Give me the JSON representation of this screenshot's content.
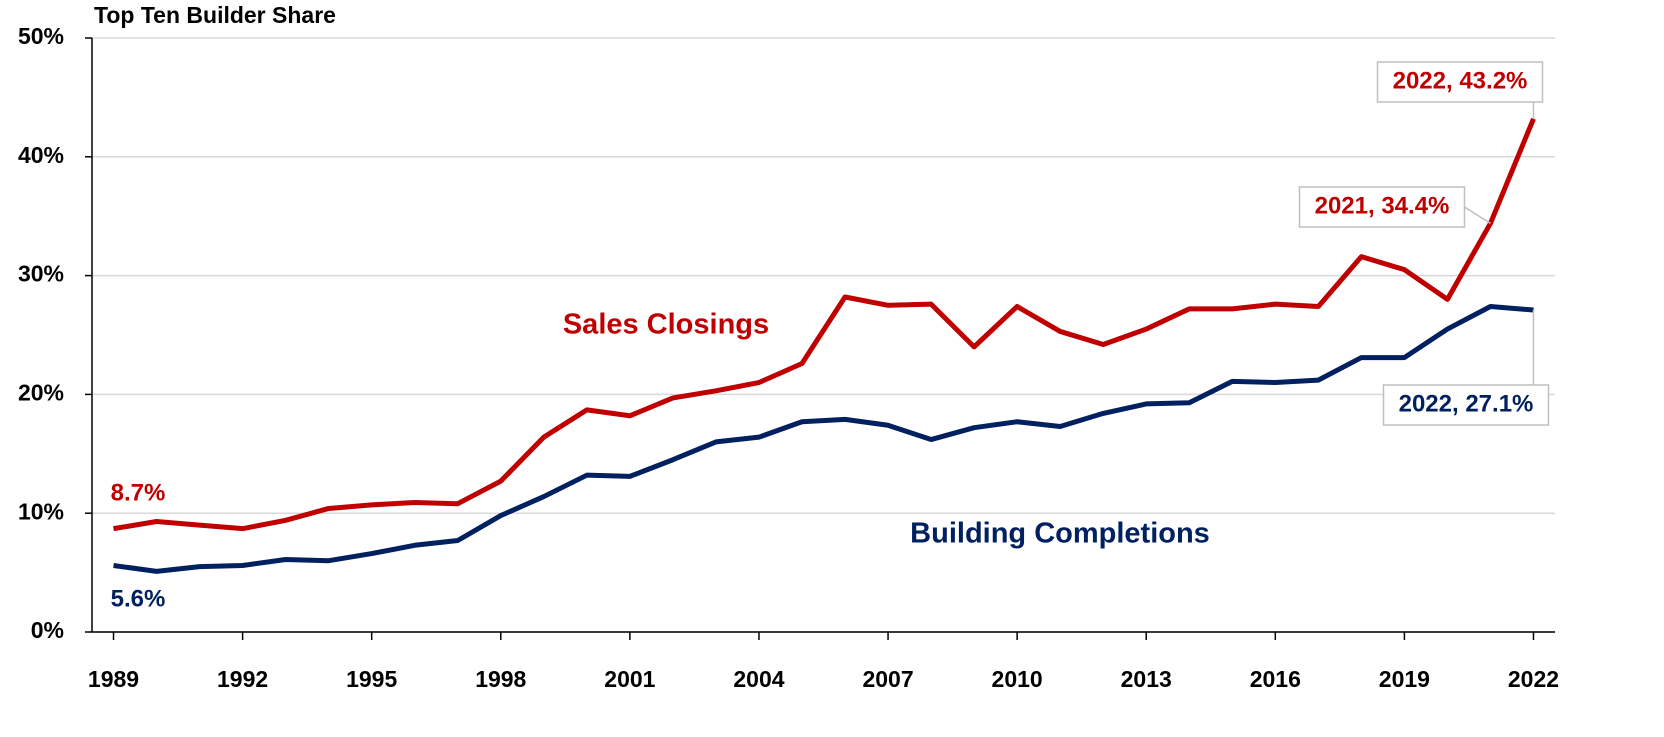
{
  "chart_data": {
    "type": "line",
    "title": "Top Ten Builder Share",
    "x": [
      1989,
      1990,
      1991,
      1992,
      1993,
      1994,
      1995,
      1996,
      1997,
      1998,
      1999,
      2000,
      2001,
      2002,
      2003,
      2004,
      2005,
      2006,
      2007,
      2008,
      2009,
      2010,
      2011,
      2012,
      2013,
      2014,
      2015,
      2016,
      2017,
      2018,
      2019,
      2020,
      2021,
      2022
    ],
    "xlim": [
      1988.5,
      2022.5
    ],
    "xticks": [
      1989,
      1992,
      1995,
      1998,
      2001,
      2004,
      2007,
      2010,
      2013,
      2016,
      2019,
      2022
    ],
    "ylim": [
      0,
      50
    ],
    "yticks": [
      {
        "value": 0,
        "label": "0%"
      },
      {
        "value": 10,
        "label": "10%"
      },
      {
        "value": 20,
        "label": "20%"
      },
      {
        "value": 30,
        "label": "30%"
      },
      {
        "value": 40,
        "label": "40%"
      },
      {
        "value": 50,
        "label": "50%"
      }
    ],
    "grid": true,
    "series": [
      {
        "name": "Sales Closings",
        "color": "#c00000",
        "values": [
          8.7,
          9.3,
          9.0,
          8.7,
          9.4,
          10.4,
          10.7,
          10.9,
          10.8,
          12.7,
          16.4,
          18.7,
          18.2,
          19.7,
          20.3,
          21.0,
          22.6,
          28.2,
          27.5,
          27.6,
          24.0,
          27.4,
          25.3,
          24.2,
          25.5,
          27.2,
          27.2,
          27.6,
          27.4,
          31.6,
          30.5,
          28.0,
          34.4,
          43.2
        ],
        "value_labels": [
          "8.7%",
          null,
          null,
          null,
          null,
          null,
          null,
          null,
          null,
          null,
          null,
          null,
          null,
          null,
          null,
          null,
          null,
          null,
          null,
          null,
          null,
          null,
          null,
          null,
          null,
          null,
          null,
          null,
          null,
          null,
          null,
          null,
          "2021, 34.4%",
          "2022, 43.2%"
        ]
      },
      {
        "name": "Building Completions",
        "color": "#002060",
        "values": [
          5.6,
          5.1,
          5.5,
          5.6,
          6.1,
          6.0,
          6.6,
          7.3,
          7.7,
          9.8,
          11.4,
          13.2,
          13.1,
          14.5,
          16.0,
          16.4,
          17.7,
          17.9,
          17.4,
          16.2,
          17.2,
          17.7,
          17.3,
          18.4,
          19.2,
          19.3,
          21.1,
          21.0,
          21.2,
          23.1,
          23.1,
          25.5,
          27.4,
          27.1
        ],
        "value_labels": [
          "5.6%",
          null,
          null,
          null,
          null,
          null,
          null,
          null,
          null,
          null,
          null,
          null,
          null,
          null,
          null,
          null,
          null,
          null,
          null,
          null,
          null,
          null,
          null,
          null,
          null,
          null,
          null,
          null,
          null,
          null,
          null,
          null,
          null,
          "2022, 27.1%"
        ]
      }
    ]
  }
}
